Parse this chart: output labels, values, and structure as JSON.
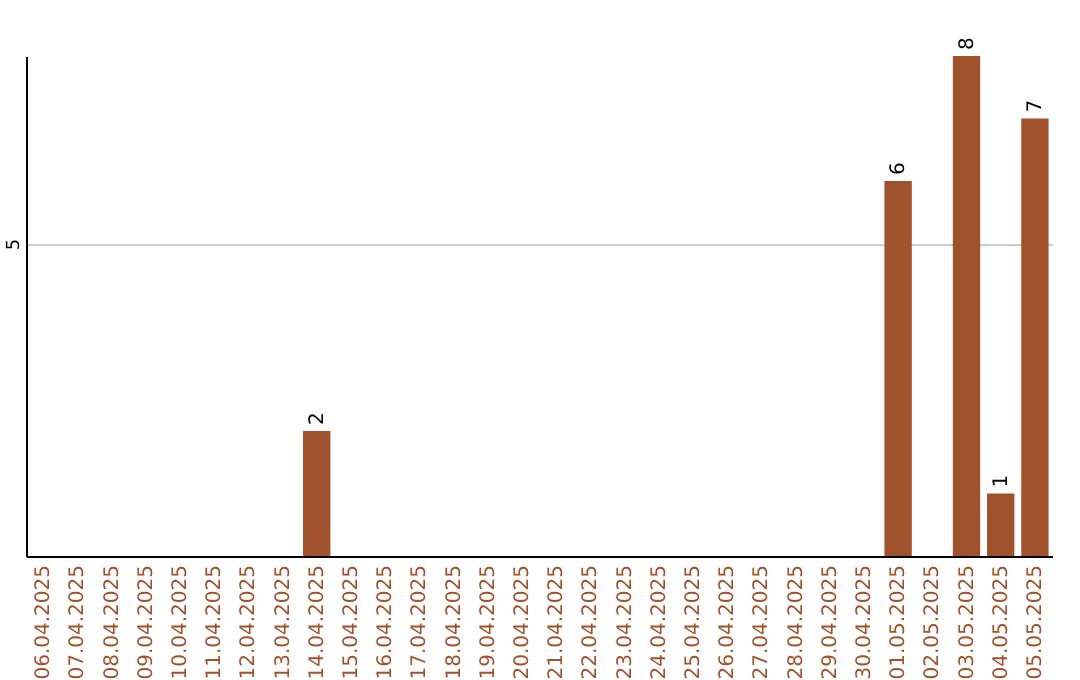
{
  "chart_data": {
    "type": "bar",
    "categories": [
      "06.04.2025",
      "07.04.2025",
      "08.04.2025",
      "09.04.2025",
      "10.04.2025",
      "11.04.2025",
      "12.04.2025",
      "13.04.2025",
      "14.04.2025",
      "15.04.2025",
      "16.04.2025",
      "17.04.2025",
      "18.04.2025",
      "19.04.2025",
      "20.04.2025",
      "21.04.2025",
      "22.04.2025",
      "23.04.2025",
      "24.04.2025",
      "25.04.2025",
      "26.04.2025",
      "27.04.2025",
      "28.04.2025",
      "29.04.2025",
      "30.04.2025",
      "01.05.2025",
      "02.05.2025",
      "03.05.2025",
      "04.05.2025",
      "05.05.2025"
    ],
    "values": [
      0,
      0,
      0,
      0,
      0,
      0,
      0,
      0,
      2,
      0,
      0,
      0,
      0,
      0,
      0,
      0,
      0,
      0,
      0,
      0,
      0,
      0,
      0,
      0,
      0,
      6,
      0,
      8,
      1,
      7
    ],
    "value_labels": [
      null,
      null,
      null,
      null,
      null,
      null,
      null,
      null,
      "2",
      null,
      null,
      null,
      null,
      null,
      null,
      null,
      null,
      null,
      null,
      null,
      null,
      null,
      null,
      null,
      null,
      "6",
      null,
      "8",
      "1",
      "7"
    ],
    "color": "#a0522d",
    "ylim": [
      0,
      8
    ],
    "yticks": [
      5
    ],
    "grid": "y"
  }
}
